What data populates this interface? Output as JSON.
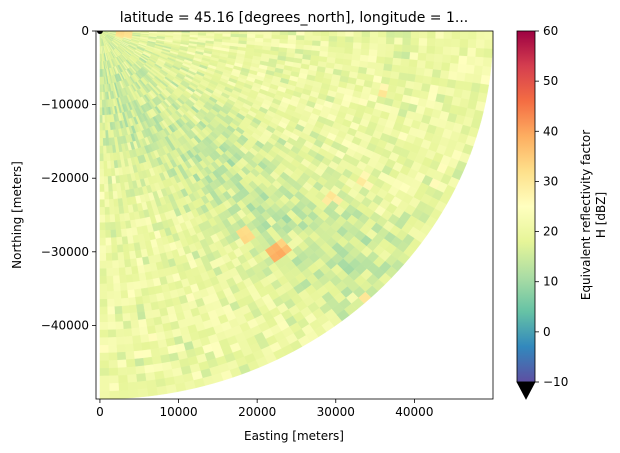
{
  "chart_data": {
    "type": "heatmap",
    "title": "latitude = 45.16 [degrees_north], longitude = 1...",
    "xlabel": "Easting [meters]",
    "ylabel": "Northing [meters]",
    "xlim": [
      -500,
      50000
    ],
    "ylim": [
      -50000,
      0
    ],
    "xticks": [
      0,
      10000,
      20000,
      30000,
      40000
    ],
    "xtick_labels": [
      "0",
      "10000",
      "20000",
      "30000",
      "40000"
    ],
    "yticks": [
      0,
      -10000,
      -20000,
      -30000,
      -40000
    ],
    "ytick_labels": [
      "0",
      "−10000",
      "−20000",
      "−30000",
      "−40000"
    ],
    "grid": false,
    "radar_range_max": 50000,
    "sector_azimuth_deg": [
      90,
      180
    ],
    "colorbar": {
      "label_line1": "Equivalent reflectivity factor",
      "label_line2": "H [dBZ]",
      "min": -10,
      "max": 60,
      "ticks": [
        60,
        50,
        40,
        30,
        20,
        10,
        0,
        -10
      ],
      "tick_labels": [
        "60",
        "50",
        "40",
        "30",
        "20",
        "10",
        "0",
        "−10"
      ],
      "extend": "min",
      "colormap": "Spectral_r"
    },
    "field_summary": {
      "typical_range_dbz": [
        14,
        26
      ],
      "enhanced_band_dbz": 14,
      "hotspots": [
        {
          "x": 22500,
          "y": -30200,
          "dbz": 42
        },
        {
          "x": 23500,
          "y": -29600,
          "dbz": 38
        },
        {
          "x": 29500,
          "y": -22800,
          "dbz": 33
        },
        {
          "x": 34000,
          "y": -36200,
          "dbz": 32
        },
        {
          "x": 33500,
          "y": -20500,
          "dbz": 31
        },
        {
          "x": 36000,
          "y": -8500,
          "dbz": 31
        },
        {
          "x": 3000,
          "y": -200,
          "dbz": 35
        },
        {
          "x": 18500,
          "y": -27800,
          "dbz": 36
        }
      ]
    }
  }
}
